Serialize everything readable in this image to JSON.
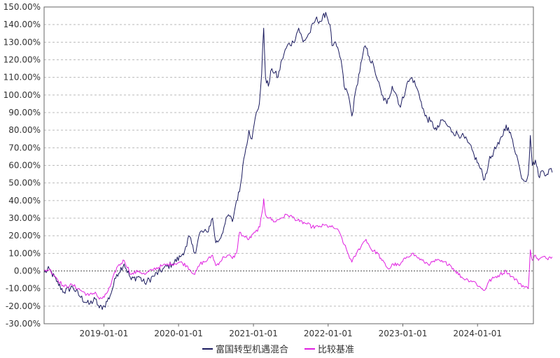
{
  "chart_data": {
    "type": "line",
    "title": "",
    "xlabel": "",
    "ylabel": "",
    "x_range": [
      "2018-03-15",
      "2024-09-30"
    ],
    "ylim": [
      -30,
      150
    ],
    "y_ticks": [
      150,
      140,
      130,
      120,
      110,
      100,
      90,
      80,
      70,
      60,
      50,
      40,
      30,
      20,
      10,
      0,
      -10,
      -20,
      -30
    ],
    "y_tick_labels": [
      "150.00%",
      "140.00%",
      "130.00%",
      "120.00%",
      "110.00%",
      "100.00%",
      "90.00%",
      "80.00%",
      "70.00%",
      "60.00%",
      "50.00%",
      "40.00%",
      "30.00%",
      "20.00%",
      "10.00%",
      "0.00%",
      "-10.00%",
      "-20.00%",
      "-30.00%"
    ],
    "x_tick_labels": [
      "2019-01-01",
      "2020-01-01",
      "2021-01-01",
      "2022-01-01",
      "2023-01-01",
      "2024-01-01"
    ],
    "grid": true,
    "legend_position": "bottom-center",
    "series": [
      {
        "name": "富国转型机遇混合",
        "color": "#1a1a5e",
        "points": [
          [
            "2018-03-15",
            -1
          ],
          [
            "2018-04-10",
            1
          ],
          [
            "2018-05-15",
            -6
          ],
          [
            "2018-06-20",
            -12
          ],
          [
            "2018-08-01",
            -9
          ],
          [
            "2018-09-10",
            -15
          ],
          [
            "2018-10-20",
            -19
          ],
          [
            "2018-11-20",
            -16
          ],
          [
            "2018-12-10",
            -21
          ],
          [
            "2019-01-03",
            -20
          ],
          [
            "2019-02-01",
            -14
          ],
          [
            "2019-03-05",
            -2
          ],
          [
            "2019-04-10",
            4
          ],
          [
            "2019-05-15",
            -5
          ],
          [
            "2019-06-20",
            -3
          ],
          [
            "2019-07-20",
            -7
          ],
          [
            "2019-09-01",
            -3
          ],
          [
            "2019-10-15",
            1
          ],
          [
            "2019-12-01",
            4
          ],
          [
            "2020-01-10",
            8
          ],
          [
            "2020-02-10",
            14
          ],
          [
            "2020-02-20",
            20
          ],
          [
            "2020-03-20",
            10
          ],
          [
            "2020-04-15",
            22
          ],
          [
            "2020-05-20",
            22
          ],
          [
            "2020-06-15",
            30
          ],
          [
            "2020-07-01",
            16
          ],
          [
            "2020-07-20",
            18
          ],
          [
            "2020-08-10",
            25
          ],
          [
            "2020-09-01",
            32
          ],
          [
            "2020-09-20",
            28
          ],
          [
            "2020-10-10",
            40
          ],
          [
            "2020-10-25",
            45
          ],
          [
            "2020-11-10",
            60
          ],
          [
            "2020-11-25",
            70
          ],
          [
            "2020-12-10",
            80
          ],
          [
            "2020-12-25",
            75
          ],
          [
            "2021-01-15",
            90
          ],
          [
            "2021-01-30",
            95
          ],
          [
            "2021-02-10",
            112
          ],
          [
            "2021-02-20",
            138
          ],
          [
            "2021-03-01",
            110
          ],
          [
            "2021-03-15",
            105
          ],
          [
            "2021-04-01",
            115
          ],
          [
            "2021-05-01",
            110
          ],
          [
            "2021-05-20",
            120
          ],
          [
            "2021-06-15",
            128
          ],
          [
            "2021-07-15",
            130
          ],
          [
            "2021-08-10",
            138
          ],
          [
            "2021-09-01",
            130
          ],
          [
            "2021-10-01",
            135
          ],
          [
            "2021-11-01",
            143
          ],
          [
            "2021-12-01",
            142
          ],
          [
            "2021-12-20",
            147
          ],
          [
            "2022-01-10",
            140
          ],
          [
            "2022-01-20",
            128
          ],
          [
            "2022-02-01",
            130
          ],
          [
            "2022-03-05",
            120
          ],
          [
            "2022-03-20",
            105
          ],
          [
            "2022-04-10",
            100
          ],
          [
            "2022-04-27",
            88
          ],
          [
            "2022-05-20",
            105
          ],
          [
            "2022-06-15",
            120
          ],
          [
            "2022-07-01",
            128
          ],
          [
            "2022-07-20",
            122
          ],
          [
            "2022-08-15",
            115
          ],
          [
            "2022-09-01",
            108
          ],
          [
            "2022-09-20",
            100
          ],
          [
            "2022-10-15",
            95
          ],
          [
            "2022-11-10",
            105
          ],
          [
            "2022-12-01",
            100
          ],
          [
            "2022-12-20",
            93
          ],
          [
            "2023-01-20",
            106
          ],
          [
            "2023-02-15",
            110
          ],
          [
            "2023-03-10",
            104
          ],
          [
            "2023-04-01",
            96
          ],
          [
            "2023-04-20",
            88
          ],
          [
            "2023-05-15",
            85
          ],
          [
            "2023-06-15",
            80
          ],
          [
            "2023-07-15",
            86
          ],
          [
            "2023-08-10",
            82
          ],
          [
            "2023-09-01",
            79
          ],
          [
            "2023-10-15",
            77
          ],
          [
            "2023-11-15",
            73
          ],
          [
            "2023-12-15",
            66
          ],
          [
            "2024-01-15",
            58
          ],
          [
            "2024-02-05",
            52
          ],
          [
            "2024-02-25",
            62
          ],
          [
            "2024-03-20",
            68
          ],
          [
            "2024-04-15",
            72
          ],
          [
            "2024-05-20",
            83
          ],
          [
            "2024-06-15",
            76
          ],
          [
            "2024-07-10",
            66
          ],
          [
            "2024-07-30",
            55
          ],
          [
            "2024-08-20",
            51
          ],
          [
            "2024-09-05",
            55
          ],
          [
            "2024-09-15",
            77
          ],
          [
            "2024-09-25",
            60
          ],
          [
            "2024-10-10",
            63
          ],
          [
            "2024-10-25",
            54
          ],
          [
            "2024-11-15",
            57
          ],
          [
            "2024-12-05",
            55
          ],
          [
            "2024-12-20",
            58
          ],
          [
            "2024-12-31",
            56
          ]
        ]
      },
      {
        "name": "比较基准",
        "color": "#e020e0",
        "points": [
          [
            "2018-03-15",
            0
          ],
          [
            "2018-04-10",
            1
          ],
          [
            "2018-05-15",
            -4
          ],
          [
            "2018-06-20",
            -9
          ],
          [
            "2018-08-01",
            -8
          ],
          [
            "2018-09-10",
            -11
          ],
          [
            "2018-10-20",
            -14
          ],
          [
            "2018-11-20",
            -12
          ],
          [
            "2018-12-10",
            -16
          ],
          [
            "2019-01-03",
            -15
          ],
          [
            "2019-02-01",
            -9
          ],
          [
            "2019-03-05",
            2
          ],
          [
            "2019-04-10",
            6
          ],
          [
            "2019-05-15",
            -2
          ],
          [
            "2019-06-20",
            0
          ],
          [
            "2019-07-20",
            -2
          ],
          [
            "2019-09-01",
            1
          ],
          [
            "2019-10-15",
            3
          ],
          [
            "2019-12-01",
            4
          ],
          [
            "2020-01-10",
            5
          ],
          [
            "2020-02-10",
            3
          ],
          [
            "2020-03-20",
            -2
          ],
          [
            "2020-04-15",
            4
          ],
          [
            "2020-05-20",
            6
          ],
          [
            "2020-06-15",
            9
          ],
          [
            "2020-07-01",
            3
          ],
          [
            "2020-07-20",
            5
          ],
          [
            "2020-08-10",
            8
          ],
          [
            "2020-09-01",
            9
          ],
          [
            "2020-09-20",
            7
          ],
          [
            "2020-10-10",
            10
          ],
          [
            "2020-10-25",
            22
          ],
          [
            "2020-11-10",
            20
          ],
          [
            "2020-12-10",
            18
          ],
          [
            "2021-01-10",
            22
          ],
          [
            "2021-02-01",
            25
          ],
          [
            "2021-02-15",
            35
          ],
          [
            "2021-02-20",
            41
          ],
          [
            "2021-03-01",
            32
          ],
          [
            "2021-03-20",
            30
          ],
          [
            "2021-04-15",
            28
          ],
          [
            "2021-05-15",
            30
          ],
          [
            "2021-06-15",
            32
          ],
          [
            "2021-07-20",
            30
          ],
          [
            "2021-08-15",
            28
          ],
          [
            "2021-09-15",
            27
          ],
          [
            "2021-10-15",
            25
          ],
          [
            "2021-11-15",
            25
          ],
          [
            "2021-12-15",
            26
          ],
          [
            "2022-01-15",
            25
          ],
          [
            "2022-02-10",
            24
          ],
          [
            "2022-03-05",
            20
          ],
          [
            "2022-03-20",
            15
          ],
          [
            "2022-04-27",
            5
          ],
          [
            "2022-05-20",
            10
          ],
          [
            "2022-06-15",
            15
          ],
          [
            "2022-07-05",
            18
          ],
          [
            "2022-08-01",
            12
          ],
          [
            "2022-09-01",
            10
          ],
          [
            "2022-09-20",
            6
          ],
          [
            "2022-10-25",
            1
          ],
          [
            "2022-11-15",
            4
          ],
          [
            "2022-12-15",
            3
          ],
          [
            "2023-01-20",
            8
          ],
          [
            "2023-02-15",
            10
          ],
          [
            "2023-03-10",
            8
          ],
          [
            "2023-04-15",
            5
          ],
          [
            "2023-05-15",
            4
          ],
          [
            "2023-06-15",
            6
          ],
          [
            "2023-07-15",
            5
          ],
          [
            "2023-08-15",
            4
          ],
          [
            "2023-09-15",
            0
          ],
          [
            "2023-10-20",
            -4
          ],
          [
            "2023-11-15",
            -5
          ],
          [
            "2023-12-15",
            -6
          ],
          [
            "2024-01-20",
            -10
          ],
          [
            "2024-02-05",
            -11
          ],
          [
            "2024-02-25",
            -6
          ],
          [
            "2024-03-20",
            -4
          ],
          [
            "2024-04-20",
            -2
          ],
          [
            "2024-05-20",
            0
          ],
          [
            "2024-06-15",
            -3
          ],
          [
            "2024-07-15",
            -6
          ],
          [
            "2024-08-15",
            -9
          ],
          [
            "2024-09-05",
            -10
          ],
          [
            "2024-09-15",
            12
          ],
          [
            "2024-09-25",
            6
          ],
          [
            "2024-10-10",
            9
          ],
          [
            "2024-10-25",
            6
          ],
          [
            "2024-11-15",
            8
          ],
          [
            "2024-12-05",
            7
          ],
          [
            "2024-12-20",
            8
          ],
          [
            "2024-12-31",
            8
          ]
        ]
      }
    ]
  }
}
